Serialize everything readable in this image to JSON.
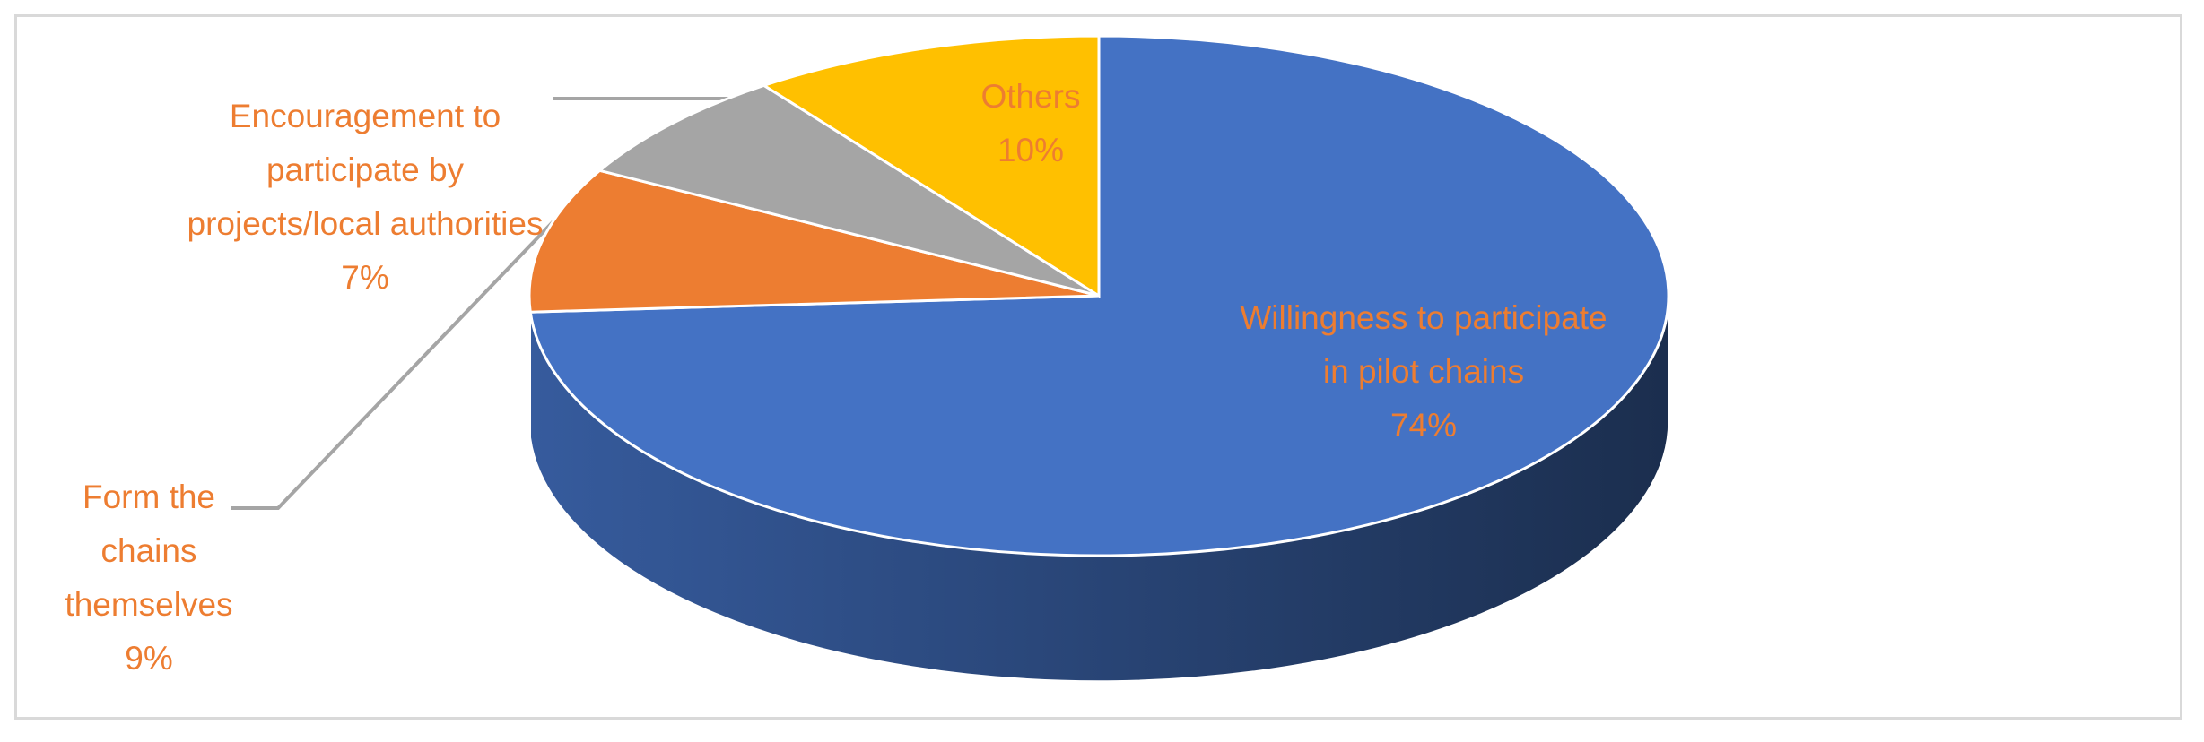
{
  "chart_data": {
    "type": "pie",
    "categories": [
      "Willingness to participate in pilot chains",
      "Form the chains themselves",
      "Encouragement to participate by projects/local authorities",
      "Others"
    ],
    "values": [
      74,
      9,
      7,
      10
    ],
    "value_labels": [
      "74%",
      "9%",
      "7%",
      "10%"
    ],
    "colors": [
      "#4472c4",
      "#ed7d31",
      "#a5a5a5",
      "#ffc000"
    ],
    "label_color": "#ed7d31"
  }
}
